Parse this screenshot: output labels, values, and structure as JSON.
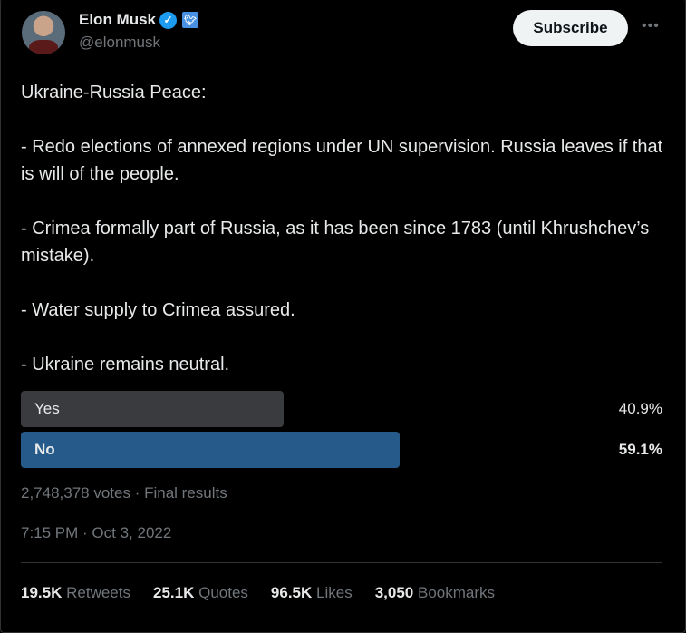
{
  "author": {
    "name": "Elon Musk",
    "handle": "@elonmusk"
  },
  "subscribe_label": "Subscribe",
  "more_label": "•••",
  "tweet_text": "Ukraine-Russia Peace:\n\n- Redo elections of annexed regions under UN supervision. Russia leaves if that is will of the people.\n\n- Crimea formally part of Russia, as it has been since 1783 (until Khrushchev’s mistake).\n\n- Water supply to Crimea assured.\n\n- Ukraine remains neutral.",
  "poll": {
    "options": [
      {
        "label": "Yes",
        "percent_text": "40.9%",
        "percent": 40.9,
        "winner": false,
        "color": "#3a3b3f"
      },
      {
        "label": "No",
        "percent_text": "59.1%",
        "percent": 59.1,
        "winner": true,
        "color": "#265a8a"
      }
    ],
    "summary": "2,748,378 votes · Final results"
  },
  "timestamp": "7:15 PM · Oct 3, 2022",
  "stats": [
    {
      "value": "19.5K",
      "label": "Retweets"
    },
    {
      "value": "25.1K",
      "label": "Quotes"
    },
    {
      "value": "96.5K",
      "label": "Likes"
    },
    {
      "value": "3,050",
      "label": "Bookmarks"
    }
  ]
}
